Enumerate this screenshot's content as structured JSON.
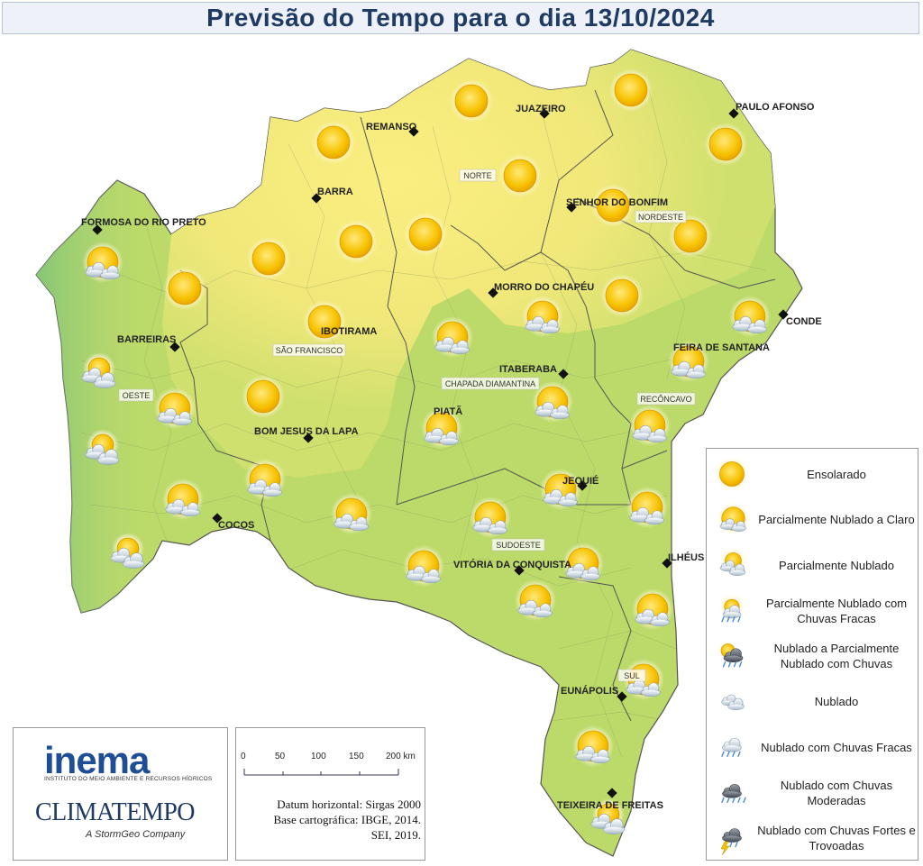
{
  "title": "Previsão do Tempo para o dia 13/10/2024",
  "colors": {
    "title": "#1f3b63",
    "sunny_region": "#f5ec82",
    "green_region": "#bcda6a",
    "west_green": "#8cc87a",
    "border": "#555555"
  },
  "cities": [
    {
      "name": "REMANSO"
    },
    {
      "name": "JUAZEIRO"
    },
    {
      "name": "PAULO AFONSO"
    },
    {
      "name": "BARRA"
    },
    {
      "name": "SENHOR DO BONFIM"
    },
    {
      "name": "FORMOSA DO RIO PRETO"
    },
    {
      "name": "MORRO DO CHAPÉU"
    },
    {
      "name": "CONDE"
    },
    {
      "name": "IBOTIRAMA"
    },
    {
      "name": "BARREIRAS"
    },
    {
      "name": "FEIRA DE SANTANA"
    },
    {
      "name": "ITABERABA"
    },
    {
      "name": "PIATÃ"
    },
    {
      "name": "BOM JESUS DA LAPA"
    },
    {
      "name": "JEQUIÉ"
    },
    {
      "name": "COCOS"
    },
    {
      "name": "ILHÉUS"
    },
    {
      "name": "VITÓRIA DA CONQUISTA"
    },
    {
      "name": "EUNÁPOLIS"
    },
    {
      "name": "TEIXEIRA DE FREITAS"
    }
  ],
  "regions": [
    {
      "name": "NORTE"
    },
    {
      "name": "NORDESTE"
    },
    {
      "name": "SÃO FRANCISCO"
    },
    {
      "name": "OESTE"
    },
    {
      "name": "CHAPADA DIAMANTINA"
    },
    {
      "name": "RECÔNCAVO"
    },
    {
      "name": "SUDOESTE"
    },
    {
      "name": "SUL"
    }
  ],
  "forecast_icons": [
    "sun",
    "sun",
    "sun",
    "sun",
    "sun",
    "sun",
    "sun",
    "sun",
    "sun",
    "sun",
    "sun",
    "sun",
    "sun",
    "sun",
    "sun-clouds",
    "sun-clouds",
    "sun-clouds",
    "sun-clouds",
    "sun-clouds",
    "sun-clouds",
    "sun-clouds",
    "sun-clouds",
    "sun-clouds",
    "sun-clouds",
    "sun-clouds",
    "sun-clouds",
    "sun-clouds",
    "sun-clouds",
    "sun-clouds",
    "sun-clouds",
    "sun-clouds",
    "sun-clouds",
    "sun-clouds",
    "sun-clouds",
    "sun-clouds",
    "partly-cloudy",
    "partly-cloudy",
    "partly-cloudy"
  ],
  "legend": [
    {
      "label": "Ensolarado",
      "icon": "sun"
    },
    {
      "label": "Parcialmente Nublado a Claro",
      "icon": "sun-clouds"
    },
    {
      "label": "Parcialmente Nublado",
      "icon": "partly-cloudy"
    },
    {
      "label": "Parcialmente Nublado com Chuvas Fracas",
      "icon": "partly-cloudy-light-rain"
    },
    {
      "label": "Nublado a Parcialmente Nublado com Chuvas",
      "icon": "cloudy-sun-rain"
    },
    {
      "label": "Nublado",
      "icon": "cloudy"
    },
    {
      "label": "Nublado com Chuvas Fracas",
      "icon": "cloudy-light-rain"
    },
    {
      "label": "Nublado com Chuvas Moderadas",
      "icon": "cloudy-moderate-rain"
    },
    {
      "label": "Nublado com Chuvas Fortes e Trovoadas",
      "icon": "storm"
    }
  ],
  "logos": {
    "inema": "inema",
    "inema_subtitle": "INSTITUTO DO MEIO AMBIENTE E RECURSOS HÍDRICOS",
    "climatempo": "CLIMATEMPO",
    "stormgeo": "A StormGeo Company"
  },
  "scale": {
    "ticks": [
      "0",
      "50",
      "100",
      "150",
      "200 km"
    ],
    "datum": "Datum horizontal: Sirgas 2000",
    "base": "Base cartográfica: IBGE, 2014.",
    "sei": "SEI, 2019."
  }
}
